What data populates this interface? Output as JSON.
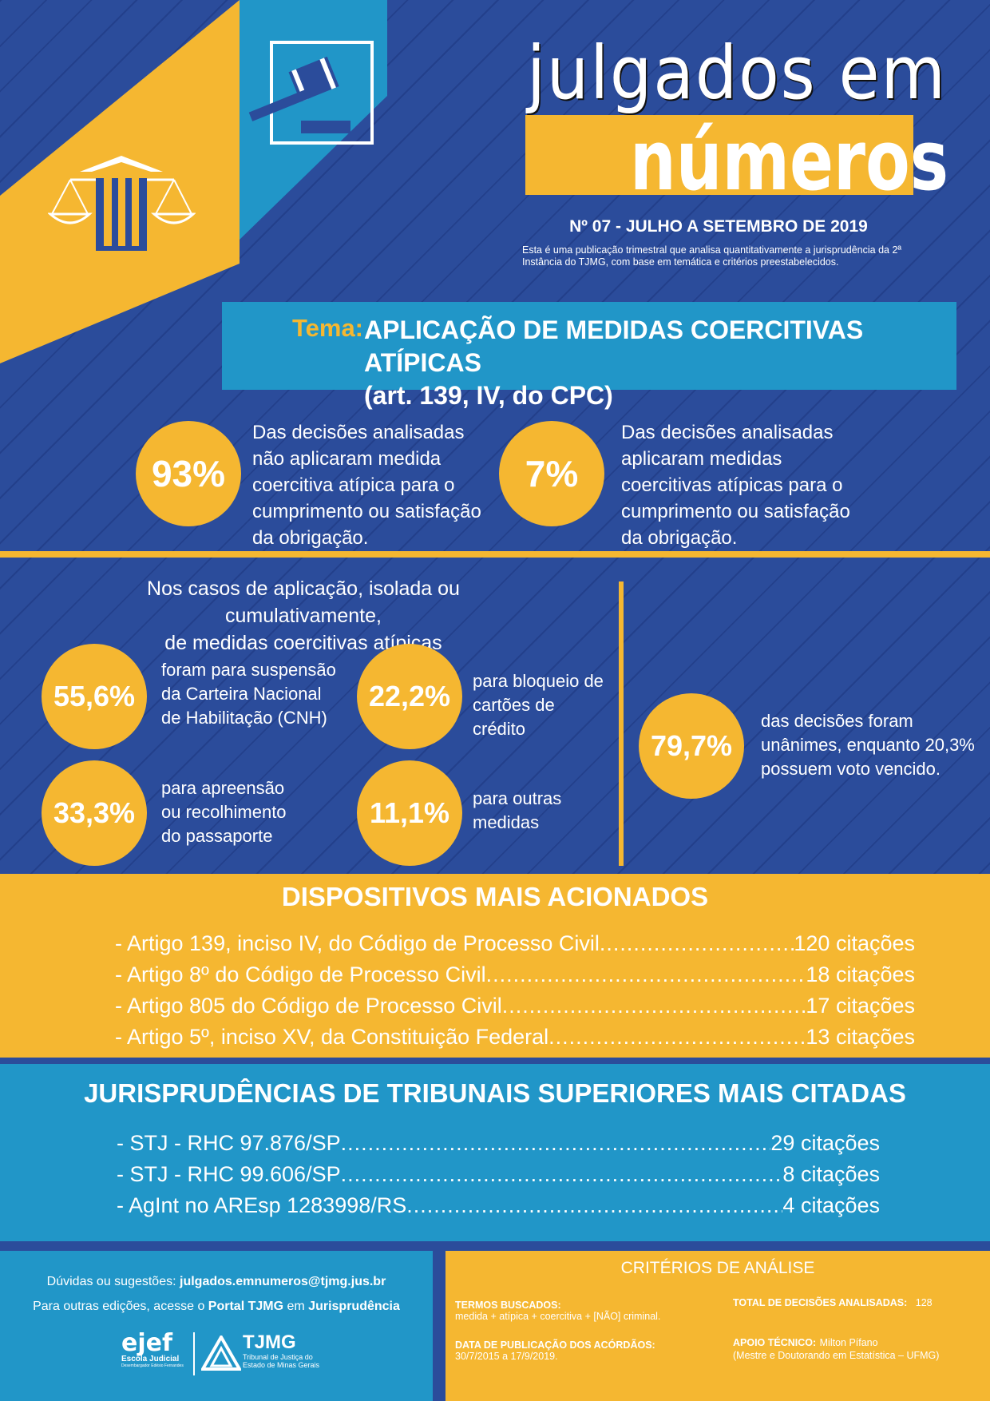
{
  "header": {
    "title_line1": "julgados em",
    "title_line2": "números",
    "edition": "Nº 07 - JULHO A SETEMBRO DE 2019",
    "description": "Esta é uma publicação trimestral que analisa quantitativamente a jurisprudência da 2ª Instância do TJMG, com base em temática e critérios preestabelecidos."
  },
  "theme": {
    "label": "Tema:",
    "title_line1": "APLICAÇÃO DE MEDIDAS COERCITIVAS ATÍPICAS",
    "title_line2": "(art. 139, IV, do CPC)"
  },
  "top_stats": [
    {
      "value": "93%",
      "text": "Das decisões analisadas não aplicaram medida coercitiva atípica para o cumprimento ou satisfação da obrigação."
    },
    {
      "value": "7%",
      "text": "Das decisões analisadas aplicaram medidas coercitivas atípicas para o cumprimento ou satisfação da obrigação."
    }
  ],
  "cases": {
    "heading_line1": "Nos casos de aplicação, isolada ou cumulativamente,",
    "heading_line2": "de medidas coercitivas atípicas",
    "items": [
      {
        "value": "55,6%",
        "text": "foram para suspensão da Carteira Nacional de Habilitação (CNH)"
      },
      {
        "value": "22,2%",
        "text": "para bloqueio de cartões de crédito"
      },
      {
        "value": "33,3%",
        "text": "para apreensão ou recolhimento do passaporte"
      },
      {
        "value": "11,1%",
        "text": "para outras medidas"
      }
    ],
    "unanimous": {
      "value": "79,7%",
      "text": "das decisões foram unânimes, enquanto 20,3% possuem voto vencido."
    }
  },
  "devices": {
    "heading": "DISPOSITIVOS MAIS ACIONADOS",
    "items": [
      {
        "label": "- Artigo 139, inciso IV, do Código de Processo Civil",
        "count": "120 citações"
      },
      {
        "label": "- Artigo 8º do Código de Processo Civil",
        "count": "18 citações"
      },
      {
        "label": "- Artigo 805 do Código de Processo Civil",
        "count": "17 citações"
      },
      {
        "label": "- Artigo 5º, inciso XV, da Constituição Federal",
        "count": "13 citações"
      }
    ]
  },
  "jurisprudence": {
    "heading": "JURISPRUDÊNCIAS DE TRIBUNAIS SUPERIORES MAIS CITADAS",
    "items": [
      {
        "label": "- STJ - RHC 97.876/SP",
        "count": "29 citações"
      },
      {
        "label": "- STJ - RHC 99.606/SP",
        "count": "8 citações"
      },
      {
        "label": "- AgInt no AREsp 1283998/RS",
        "count": "4 citações"
      }
    ]
  },
  "footer": {
    "contact_prefix": "Dúvidas ou sugestões:",
    "contact_email": "julgados.emnumeros@tjmg.jus.br",
    "editions_prefix": "Para outras edições, acesse o",
    "editions_portal": "Portal TJMG",
    "editions_mid": "em",
    "editions_section": "Jurisprudência",
    "logo_ejef": "ejef",
    "logo_ejef_sub": "Escola Judicial",
    "logo_ejef_sub2": "Desembargador Edésio Fernandes",
    "logo_tjmg": "TJMG",
    "logo_tjmg_sub1": "Tribunal de Justiça do",
    "logo_tjmg_sub2": "Estado de Minas Gerais"
  },
  "criteria": {
    "title": "CRITÉRIOS DE ANÁLISE",
    "terms_label": "TERMOS BUSCADOS:",
    "terms_value": "medida + atípica + coercitiva + [NÃO] criminal.",
    "date_label": "DATA DE PUBLICAÇÃO DOS ACÓRDÃOS:",
    "date_value": "30/7/2015 a 17/9/2019.",
    "total_label": "TOTAL DE DECISÕES ANALISADAS:",
    "total_value": "128",
    "support_label": "APOIO TÉCNICO:",
    "support_value": "Milton Pífano",
    "support_detail": "(Mestre e Doutorando em Estatística – UFMG)"
  },
  "colors": {
    "blue": "#2b4c9b",
    "yellow": "#f5b731",
    "teal": "#2196c8"
  }
}
